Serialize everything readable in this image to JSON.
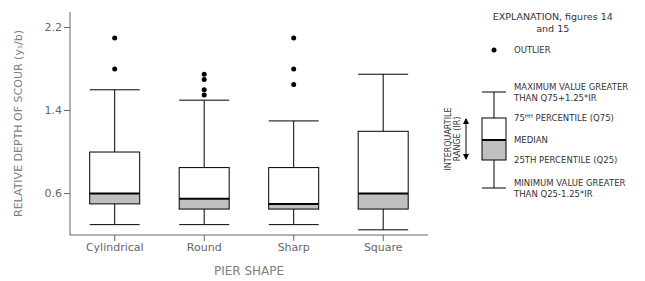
{
  "chart_data": {
    "type": "box",
    "categories": [
      "Cylindrical",
      "Round",
      "Sharp",
      "Square"
    ],
    "boxes": [
      {
        "whislo": 0.3,
        "q1": 0.5,
        "med": 0.6,
        "q3": 1.0,
        "whishi": 1.6,
        "fliers": [
          1.8,
          2.1
        ]
      },
      {
        "whislo": 0.3,
        "q1": 0.45,
        "med": 0.55,
        "q3": 0.85,
        "whishi": 1.5,
        "fliers": [
          1.55,
          1.6,
          1.7,
          1.75
        ]
      },
      {
        "whislo": 0.3,
        "q1": 0.45,
        "med": 0.5,
        "q3": 0.85,
        "whishi": 1.3,
        "fliers": [
          1.65,
          1.8,
          2.1
        ]
      },
      {
        "whislo": 0.25,
        "q1": 0.45,
        "med": 0.6,
        "q3": 1.2,
        "whishi": 1.75,
        "fliers": []
      }
    ],
    "xlabel": "PIER SHAPE",
    "ylabel": "RELATIVE DEPTH OF SCOUR (yₛ/b)",
    "ylim": [
      0.2,
      2.35
    ],
    "yticks": [
      0.6,
      1.4,
      2.2
    ],
    "grid": false,
    "color": "#000000",
    "annotations": {
      "title": "EXPLANATION, figures 14\nand 15",
      "outlier": "OUTLIER",
      "iqr": "INTERQUARTILE\nRANGE (IR)",
      "max": "MAXIMUM VALUE GREATER\nTHAN Q75+1.25*IR",
      "q3": "75ᴴᴴ PERCENTILE (Q75)",
      "median": "MEDIAN",
      "q1": "25TH PERCENTILE (Q25)",
      "min": "MINIMUM VALUE GREATER\nTHAN Q25-1.25*IR"
    }
  }
}
